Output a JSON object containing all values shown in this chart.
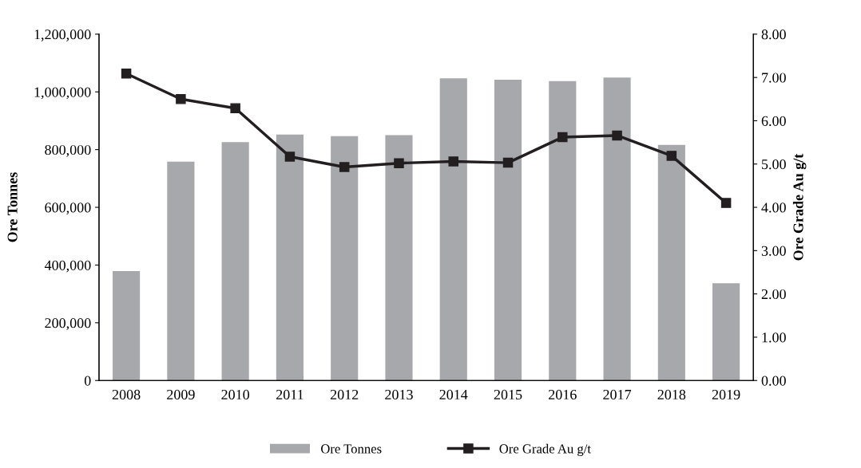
{
  "chart_data": {
    "type": "bar",
    "ylabel": "Ore Tonnes",
    "y2label": "Ore Grade Au g/t",
    "categories": [
      "2008",
      "2009",
      "2010",
      "2011",
      "2012",
      "2013",
      "2014",
      "2015",
      "2016",
      "2017",
      "2018",
      "2019"
    ],
    "series": [
      {
        "name": "Ore Tonnes",
        "color": "#a7a8ab",
        "values": [
          379000,
          758000,
          826000,
          852000,
          847000,
          850000,
          1047000,
          1042000,
          1037000,
          1050000,
          816000,
          337000
        ]
      },
      {
        "name": "Ore Grade Au g/t",
        "type": "line",
        "axis": "y2",
        "color": "#231f20",
        "marker": "square",
        "values": [
          7.09,
          6.5,
          6.29,
          5.17,
          4.93,
          5.02,
          5.06,
          5.03,
          5.62,
          5.66,
          5.19,
          4.1
        ]
      }
    ],
    "ylim": [
      0,
      1200000
    ],
    "yticks": [
      {
        "value": 0,
        "label": "0"
      },
      {
        "value": 200000,
        "label": "200,000"
      },
      {
        "value": 400000,
        "label": "400,000"
      },
      {
        "value": 600000,
        "label": "600,000"
      },
      {
        "value": 800000,
        "label": "800,000"
      },
      {
        "value": 1000000,
        "label": "1,000,000"
      },
      {
        "value": 1200000,
        "label": "1,200,000"
      }
    ],
    "y2lim": [
      0,
      8
    ],
    "y2ticks": [
      {
        "value": 0,
        "label": "0.00"
      },
      {
        "value": 1,
        "label": "1.00"
      },
      {
        "value": 2,
        "label": "2.00"
      },
      {
        "value": 3,
        "label": "3.00"
      },
      {
        "value": 4,
        "label": "4.00"
      },
      {
        "value": 5,
        "label": "5.00"
      },
      {
        "value": 6,
        "label": "6.00"
      },
      {
        "value": 7,
        "label": "7.00"
      },
      {
        "value": 8,
        "label": "8.00"
      }
    ],
    "legend": "bottom",
    "grid": false
  }
}
